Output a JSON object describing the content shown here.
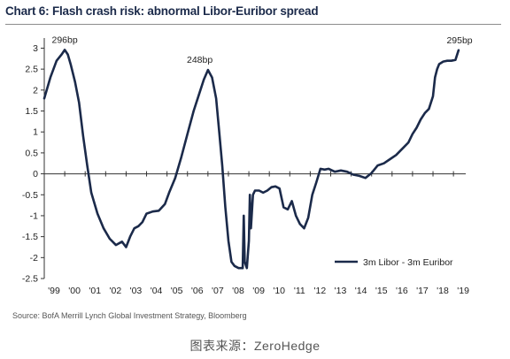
{
  "header": {
    "title": "Chart 6: Flash crash risk: abnormal Libor-Euribor spread"
  },
  "footer": {
    "source": "Source: BofA Merrill Lynch Global Investment Strategy, Bloomberg",
    "caption": "图表来源：ZeroHedge"
  },
  "colors": {
    "series": "#1b2a4a",
    "axis": "#333333",
    "text": "#1f1f1f"
  },
  "chart_data": {
    "type": "line",
    "title": "Chart 6: Flash crash risk: abnormal Libor-Euribor spread",
    "xlabel": "",
    "ylabel": "",
    "xlim": [
      1999.0,
      2019.6
    ],
    "ylim": [
      -2.5,
      3.2
    ],
    "grid": false,
    "legend_position": "bottom-right",
    "x_tick_labels": [
      "'99",
      "'00",
      "'01",
      "'02",
      "'03",
      "'04",
      "'05",
      "'06",
      "'07",
      "'08",
      "'09",
      "'10",
      "'11",
      "'12",
      "'13",
      "'14",
      "'15",
      "'16",
      "'17",
      "'18",
      "'19"
    ],
    "y_ticks": [
      3,
      2.5,
      2,
      1.5,
      1,
      0.5,
      0,
      -0.5,
      -1,
      -1.5,
      -2,
      -2.5
    ],
    "y_tick_labels": [
      "3",
      "2.5",
      "2",
      "1.5",
      "1",
      "0.5",
      "0",
      "-0.5",
      "-1",
      "-1.5",
      "-2",
      "-2.5"
    ],
    "annotations": [
      {
        "text": "296bp",
        "x": 2000.0,
        "y": 2.96
      },
      {
        "text": "248bp",
        "x": 2006.6,
        "y": 2.48
      },
      {
        "text": "295bp",
        "x": 2019.3,
        "y": 2.95
      }
    ],
    "series": [
      {
        "name": "3m Libor - 3m Euribor",
        "x": [
          1999.0,
          1999.3,
          1999.6,
          1999.85,
          2000.0,
          2000.15,
          2000.3,
          2000.5,
          2000.7,
          2000.9,
          2001.1,
          2001.3,
          2001.6,
          2001.9,
          2002.2,
          2002.5,
          2002.8,
          2003.0,
          2003.2,
          2003.4,
          2003.6,
          2003.8,
          2004.0,
          2004.3,
          2004.6,
          2004.9,
          2005.1,
          2005.4,
          2005.7,
          2006.0,
          2006.3,
          2006.6,
          2006.8,
          2007.0,
          2007.2,
          2007.4,
          2007.55,
          2007.7,
          2007.85,
          2008.0,
          2008.15,
          2008.3,
          2008.5,
          2008.7,
          2008.75,
          2008.8,
          2008.9,
          2009.0,
          2009.05,
          2009.1,
          2009.2,
          2009.3,
          2009.5,
          2009.7,
          2009.9,
          2010.1,
          2010.3,
          2010.5,
          2010.7,
          2010.9,
          2011.1,
          2011.3,
          2011.5,
          2011.7,
          2011.9,
          2012.1,
          2012.3,
          2012.5,
          2012.7,
          2012.9,
          2013.2,
          2013.5,
          2013.8,
          2014.1,
          2014.4,
          2014.7,
          2015.0,
          2015.3,
          2015.6,
          2015.9,
          2016.2,
          2016.5,
          2016.8,
          2017.0,
          2017.2,
          2017.4,
          2017.6,
          2017.8,
          2018.0,
          2018.1,
          2018.2,
          2018.3,
          2018.5,
          2018.7,
          2018.9,
          2019.1,
          2019.25
        ],
        "y": [
          1.8,
          2.3,
          2.7,
          2.85,
          2.96,
          2.85,
          2.6,
          2.2,
          1.7,
          0.9,
          0.2,
          -0.45,
          -0.95,
          -1.3,
          -1.55,
          -1.7,
          -1.62,
          -1.75,
          -1.5,
          -1.3,
          -1.25,
          -1.15,
          -0.95,
          -0.9,
          -0.88,
          -0.72,
          -0.45,
          -0.1,
          0.4,
          0.95,
          1.5,
          1.95,
          2.25,
          2.48,
          2.3,
          1.8,
          1.0,
          0.2,
          -0.8,
          -1.6,
          -2.1,
          -2.2,
          -2.25,
          -2.25,
          -1.0,
          -2.1,
          -2.25,
          -1.6,
          -0.5,
          -1.3,
          -0.5,
          -0.4,
          -0.4,
          -0.45,
          -0.4,
          -0.32,
          -0.3,
          -0.35,
          -0.8,
          -0.85,
          -0.65,
          -1.0,
          -1.2,
          -1.3,
          -1.05,
          -0.5,
          -0.2,
          0.12,
          0.1,
          0.12,
          0.05,
          0.08,
          0.05,
          -0.02,
          -0.05,
          -0.1,
          0.02,
          0.2,
          0.25,
          0.35,
          0.45,
          0.6,
          0.75,
          0.95,
          1.1,
          1.3,
          1.45,
          1.55,
          1.85,
          2.3,
          2.5,
          2.62,
          2.68,
          2.7,
          2.7,
          2.72,
          2.95
        ]
      }
    ]
  }
}
